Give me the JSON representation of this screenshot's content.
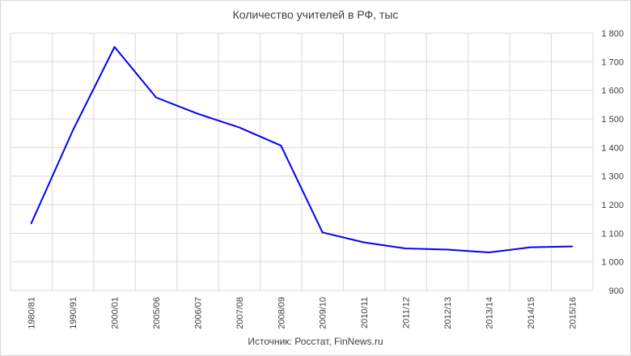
{
  "chart_data": {
    "type": "line",
    "title": "Количество учителей в РФ, тыс",
    "source_note": "Источник: Росстат, FinNews.ru",
    "categories": [
      "1980/81",
      "1990/91",
      "2000/01",
      "2005/06",
      "2006/07",
      "2007/08",
      "2008/09",
      "2009/10",
      "2010/11",
      "2011/12",
      "2012/13",
      "2013/14",
      "2014/15",
      "2015/16"
    ],
    "series": [
      {
        "values": [
          1135,
          1460,
          1752,
          1575,
          1518,
          1470,
          1407,
          1103,
          1068,
          1047,
          1043,
          1033,
          1051,
          1054
        ]
      }
    ],
    "ylim": [
      900,
      1800
    ],
    "y_ticks": [
      "900",
      "1 000",
      "1 100",
      "1 200",
      "1 300",
      "1 400",
      "1 500",
      "1 600",
      "1 700",
      "1 800"
    ],
    "y_axis_side": "right",
    "grid": true,
    "line_color": "#0000ff",
    "grid_color": "#d9d9d9"
  }
}
